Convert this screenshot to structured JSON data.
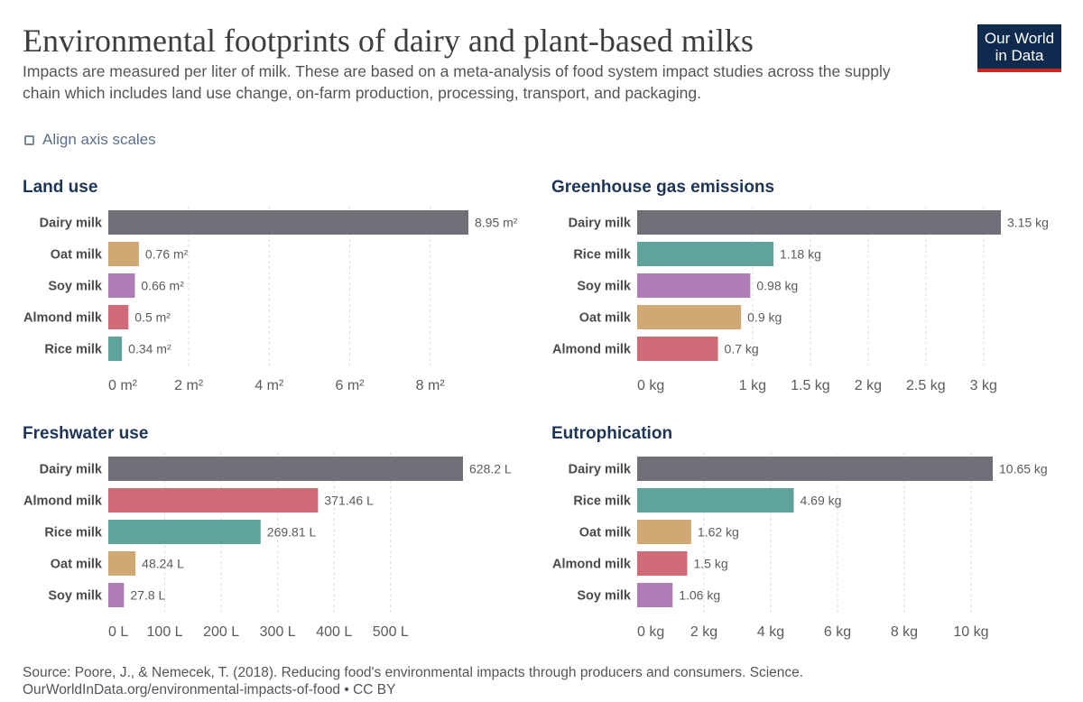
{
  "header": {
    "title": "Environmental footprints of dairy and plant-based milks",
    "subtitle": "Impacts are measured per liter of milk. These are based on a meta-analysis of food system impact studies across the supply chain which includes land use change, on-farm production, processing, transport, and packaging.",
    "logo_line1": "Our World",
    "logo_line2": "in Data"
  },
  "controls": {
    "align_axis_label": "Align axis scales",
    "align_axis_checked": false
  },
  "colors": {
    "Dairy milk": "#6e6f77",
    "Oat milk": "#cfa874",
    "Soy milk": "#b07cb5",
    "Almond milk": "#cf6b77",
    "Rice milk": "#5fa39c",
    "grid": "#dcdcdc",
    "title_blue": "#1d3557"
  },
  "chart_data": [
    {
      "type": "bar",
      "orientation": "horizontal",
      "title": "Land use",
      "categories": [
        "Dairy milk",
        "Oat milk",
        "Soy milk",
        "Almond milk",
        "Rice milk"
      ],
      "values": [
        8.95,
        0.76,
        0.66,
        0.5,
        0.34
      ],
      "value_labels": [
        "8.95 m²",
        "0.76 m²",
        "0.66 m²",
        "0.5 m²",
        "0.34 m²"
      ],
      "xlim": [
        0,
        8.95
      ],
      "ticks": [
        0,
        2,
        4,
        6,
        8
      ],
      "tick_labels": [
        "0 m²",
        "2 m²",
        "4 m²",
        "6 m²",
        "8 m²"
      ],
      "grid": true
    },
    {
      "type": "bar",
      "orientation": "horizontal",
      "title": "Greenhouse gas emissions",
      "categories": [
        "Dairy milk",
        "Rice milk",
        "Soy milk",
        "Oat milk",
        "Almond milk"
      ],
      "values": [
        3.15,
        1.18,
        0.98,
        0.9,
        0.7
      ],
      "value_labels": [
        "3.15 kg",
        "1.18 kg",
        "0.98 kg",
        "0.9 kg",
        "0.7 kg"
      ],
      "xlim": [
        0,
        3.15
      ],
      "ticks": [
        0,
        1,
        1.5,
        2,
        2.5,
        3
      ],
      "tick_labels": [
        "0 kg",
        "1 kg",
        "1.5 kg",
        "2 kg",
        "2.5 kg",
        "3 kg"
      ],
      "grid": true
    },
    {
      "type": "bar",
      "orientation": "horizontal",
      "title": "Freshwater use",
      "categories": [
        "Dairy milk",
        "Almond milk",
        "Rice milk",
        "Oat milk",
        "Soy milk"
      ],
      "values": [
        628.2,
        371.46,
        269.81,
        48.24,
        27.8
      ],
      "value_labels": [
        "628.2 L",
        "371.46 L",
        "269.81 L",
        "48.24 L",
        "27.8 L"
      ],
      "xlim": [
        0,
        628.2
      ],
      "ticks": [
        0,
        100,
        200,
        300,
        400,
        500
      ],
      "tick_labels": [
        "0 L",
        "100 L",
        "200 L",
        "300 L",
        "400 L",
        "500 L"
      ],
      "grid": true
    },
    {
      "type": "bar",
      "orientation": "horizontal",
      "title": "Eutrophication",
      "categories": [
        "Dairy milk",
        "Rice milk",
        "Oat milk",
        "Almond milk",
        "Soy milk"
      ],
      "values": [
        10.65,
        4.69,
        1.62,
        1.5,
        1.06
      ],
      "value_labels": [
        "10.65 kg",
        "4.69 kg",
        "1.62 kg",
        "1.5 kg",
        "1.06 kg"
      ],
      "xlim": [
        0,
        10.65
      ],
      "ticks": [
        0,
        2,
        4,
        6,
        8,
        10
      ],
      "tick_labels": [
        "0 kg",
        "2 kg",
        "4 kg",
        "6 kg",
        "8 kg",
        "10 kg"
      ],
      "grid": true
    }
  ],
  "footer": {
    "source_line1": "Source: Poore, J., & Nemecek, T. (2018). Reducing food's environmental impacts through producers and consumers. Science.",
    "source_line2": "OurWorldInData.org/environmental-impacts-of-food • CC BY"
  }
}
